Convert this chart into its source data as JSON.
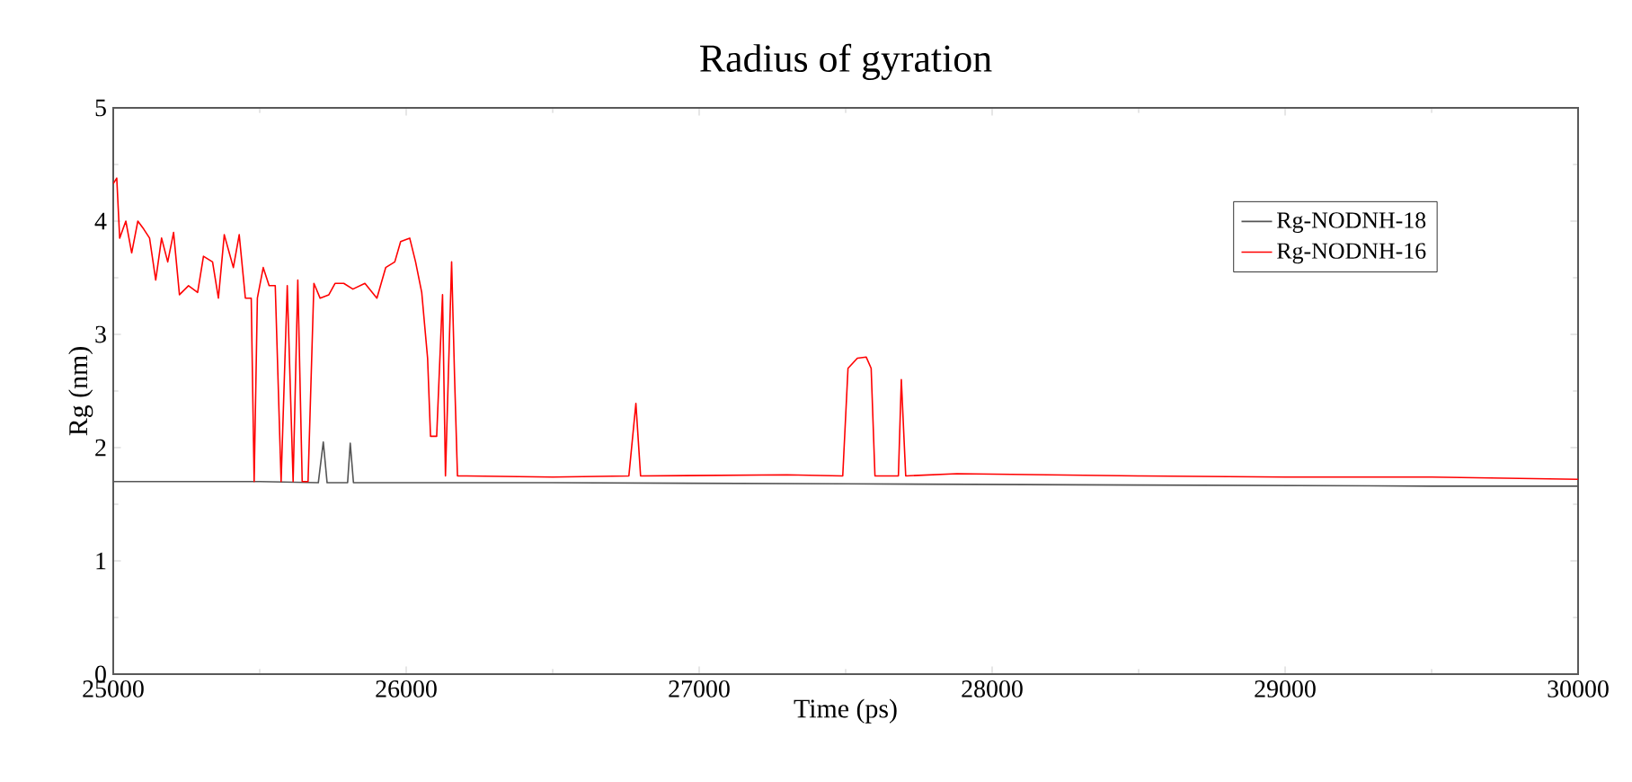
{
  "chart_data": {
    "type": "line",
    "title": "Radius of gyration",
    "xlabel": "Time (ps)",
    "ylabel": "Rg (nm)",
    "xlim": [
      25000,
      30000
    ],
    "xticks": [
      25000,
      26000,
      27000,
      28000,
      29000,
      30000
    ],
    "ylim": [
      0,
      5
    ],
    "yticks": [
      0,
      1,
      2,
      3,
      4,
      5
    ],
    "grid": false,
    "legend": "top right",
    "marker": "none",
    "line_style": "solid",
    "series": [
      {
        "name": "Rg-NODNH-18",
        "color": "#555555",
        "x": [
          25000,
          25500,
          25700,
          25717,
          25730,
          25800,
          25809,
          25820,
          26500,
          27500,
          28500,
          29500,
          30000
        ],
        "values": [
          1.7,
          1.7,
          1.69,
          2.05,
          1.69,
          1.69,
          2.04,
          1.69,
          1.69,
          1.68,
          1.67,
          1.66,
          1.66
        ]
      },
      {
        "name": "Rg-NODNH-16",
        "color": "#ff0000",
        "x": [
          25000,
          25012,
          25022,
          25043,
          25063,
          25084,
          25104,
          25124,
          25145,
          25165,
          25186,
          25206,
          25226,
          25257,
          25288,
          25308,
          25339,
          25359,
          25379,
          25410,
          25430,
          25451,
          25471,
          25481,
          25492,
          25512,
          25532,
          25553,
          25573,
          25594,
          25614,
          25630,
          25645,
          25665,
          25685,
          25706,
          25736,
          25757,
          25787,
          25818,
          25859,
          25900,
          25930,
          25961,
          25981,
          26012,
          26032,
          26053,
          26073,
          26083,
          26104,
          26124,
          26134,
          26155,
          26165,
          26175,
          26206,
          26500,
          26760,
          26784,
          26800,
          27300,
          27490,
          27508,
          27540,
          27570,
          27587,
          27600,
          27680,
          27690,
          27705,
          27880,
          28500,
          29000,
          29500,
          30000
        ],
        "values": [
          4.33,
          4.38,
          3.85,
          4.0,
          3.72,
          4.0,
          3.93,
          3.85,
          3.48,
          3.85,
          3.64,
          3.9,
          3.35,
          3.43,
          3.37,
          3.69,
          3.64,
          3.32,
          3.88,
          3.59,
          3.88,
          3.32,
          3.32,
          1.7,
          3.32,
          3.59,
          3.43,
          3.43,
          1.7,
          3.43,
          1.7,
          3.48,
          1.7,
          1.7,
          3.45,
          3.32,
          3.35,
          3.45,
          3.45,
          3.4,
          3.45,
          3.32,
          3.59,
          3.64,
          3.82,
          3.85,
          3.64,
          3.37,
          2.79,
          2.1,
          2.1,
          3.35,
          1.75,
          3.64,
          2.63,
          1.75,
          1.75,
          1.74,
          1.75,
          2.39,
          1.75,
          1.76,
          1.75,
          2.7,
          2.79,
          2.8,
          2.7,
          1.75,
          1.75,
          2.6,
          1.75,
          1.77,
          1.75,
          1.74,
          1.74,
          1.72
        ]
      }
    ]
  }
}
